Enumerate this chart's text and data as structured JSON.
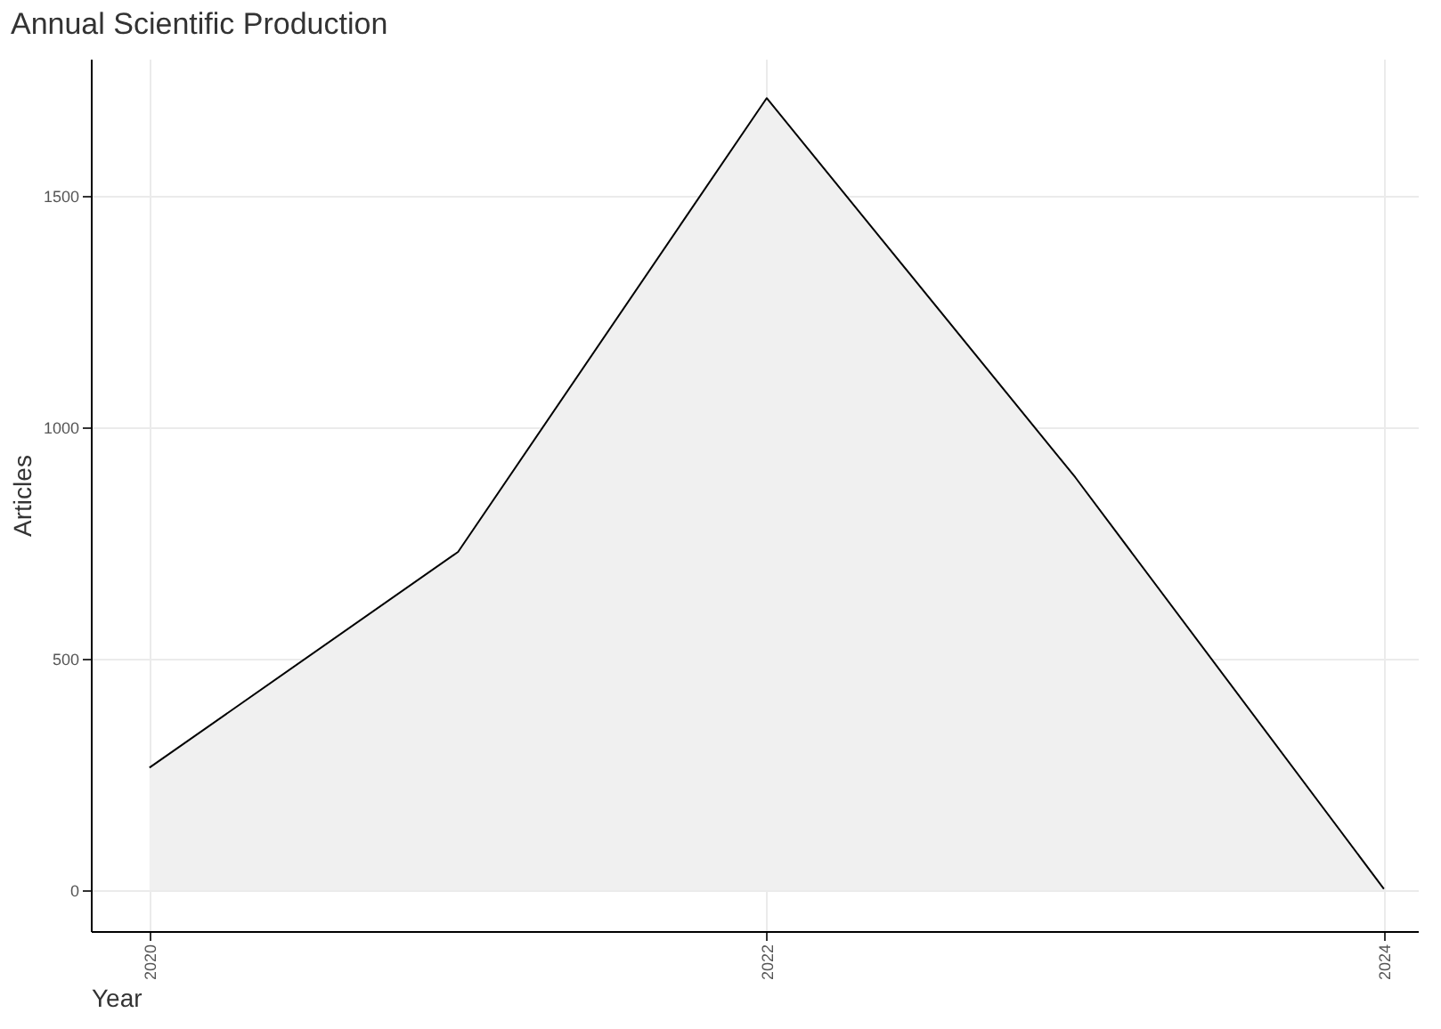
{
  "chart_data": {
    "type": "area",
    "title": "Annual Scientific Production",
    "xlabel": "Year",
    "ylabel": "Articles",
    "x": [
      2020,
      2021,
      2022,
      2023,
      2024
    ],
    "series": [
      {
        "color": "#000000",
        "values": [
          265,
          731,
          1711,
          892,
          3
        ]
      }
    ],
    "xlim": [
      2019.81,
      2024.11
    ],
    "xticks": [
      2020,
      2022,
      2024
    ],
    "ylim": [
      -88,
      1796
    ],
    "yticks": [
      0,
      500,
      1000,
      1500
    ],
    "grid": true
  }
}
